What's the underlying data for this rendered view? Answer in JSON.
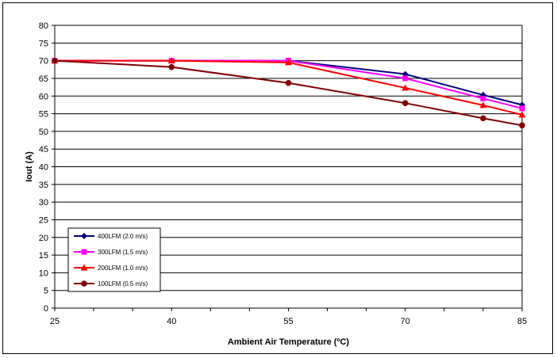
{
  "chart_data": {
    "type": "line",
    "title": "",
    "xlabel": "Ambient Air Temperature (ºC)",
    "ylabel": "Iout (A)",
    "xlim": [
      25,
      85
    ],
    "ylim": [
      0,
      80
    ],
    "xticks": [
      25,
      40,
      55,
      70,
      85
    ],
    "yticks": [
      0,
      5,
      10,
      15,
      20,
      25,
      30,
      35,
      40,
      45,
      50,
      55,
      60,
      65,
      70,
      75,
      80
    ],
    "grid": "horizontal",
    "legend_position": "bottom-left",
    "series": [
      {
        "name": "400LFM (2.0 m/s)",
        "color": "#000080",
        "marker": "diamond",
        "x": [
          25,
          40,
          55,
          70,
          80,
          85
        ],
        "y": [
          70,
          70,
          70,
          66.2,
          60.3,
          57.5
        ]
      },
      {
        "name": "300LFM (1.5 m/s)",
        "color": "#ff00ff",
        "marker": "square",
        "x": [
          25,
          40,
          55,
          70,
          80,
          85
        ],
        "y": [
          70,
          70,
          70,
          65,
          59.3,
          56.5
        ]
      },
      {
        "name": "200LFM (1.0 m/s)",
        "color": "#ff0000",
        "marker": "triangle",
        "x": [
          25,
          40,
          55,
          70,
          80,
          85
        ],
        "y": [
          70,
          70,
          69.5,
          62.3,
          57.4,
          54.7
        ]
      },
      {
        "name": "100LFM (0.5 m/s)",
        "color": "#800000",
        "marker": "circle",
        "x": [
          25,
          40,
          55,
          70,
          80,
          85
        ],
        "y": [
          70,
          68.2,
          63.7,
          58,
          53.7,
          51.7
        ]
      }
    ]
  }
}
